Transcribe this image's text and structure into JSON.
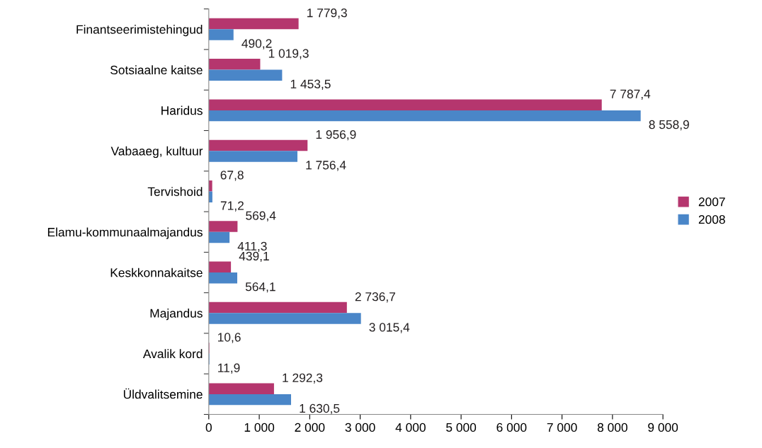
{
  "chart_data": {
    "type": "bar",
    "orientation": "horizontal",
    "categories": [
      "Finantseerimistehingud",
      "Sotsiaalne kaitse",
      "Haridus",
      "Vabaaeg, kultuur",
      "Tervishoid",
      "Elamu-kommunaalmajandus",
      "Keskkonnakaitse",
      "Majandus",
      "Avalik kord",
      "Üldvalitsemine"
    ],
    "series": [
      {
        "name": "2007",
        "color": "#b5366e",
        "values": [
          1779.3,
          1019.3,
          7787.4,
          1956.9,
          67.8,
          569.4,
          439.1,
          2736.7,
          10.6,
          1292.3
        ],
        "value_labels": [
          "1 779,3",
          "1 019,3",
          "7 787,4",
          "1 956,9",
          "67,8",
          "569,4",
          "439,1",
          "2 736,7",
          "10,6",
          "1 292,3"
        ]
      },
      {
        "name": "2008",
        "color": "#4a86c8",
        "values": [
          490.2,
          1453.5,
          8558.9,
          1756.4,
          71.2,
          411.3,
          564.1,
          3015.4,
          11.9,
          1630.5
        ],
        "value_labels": [
          "490,2",
          "1 453,5",
          "8 558,9",
          "1 756,4",
          "71,2",
          "411,3",
          "564,1",
          "3 015,4",
          "11,9",
          "1 630,5"
        ]
      }
    ],
    "xlim": [
      0,
      9000
    ],
    "xticks": [
      0,
      {
        "value": 1000,
        "label": "1 000"
      },
      {
        "value": 2000,
        "label": "2 000"
      },
      {
        "value": 3000,
        "label": "3 000"
      },
      {
        "value": 4000,
        "label": "4 000"
      },
      {
        "value": 5000,
        "label": "5 000"
      },
      {
        "value": 6000,
        "label": "6 000"
      },
      {
        "value": 7000,
        "label": "7 000"
      },
      {
        "value": 8000,
        "label": "8 000"
      },
      {
        "value": 9000,
        "label": "9 000"
      }
    ],
    "grid": false,
    "legend": "right"
  }
}
